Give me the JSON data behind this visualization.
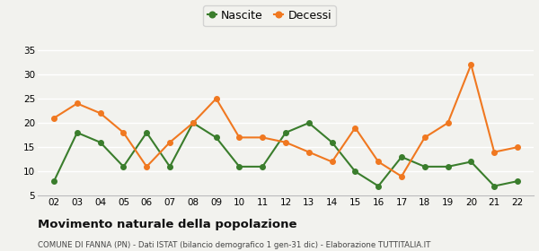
{
  "years": [
    2,
    3,
    4,
    5,
    6,
    7,
    8,
    9,
    10,
    11,
    12,
    13,
    14,
    15,
    16,
    17,
    18,
    19,
    20,
    21,
    22
  ],
  "nascite": [
    8,
    18,
    16,
    11,
    18,
    11,
    20,
    17,
    11,
    11,
    18,
    20,
    16,
    10,
    7,
    13,
    11,
    11,
    12,
    7,
    8
  ],
  "decessi": [
    21,
    24,
    22,
    18,
    11,
    16,
    20,
    25,
    17,
    17,
    16,
    14,
    12,
    19,
    12,
    9,
    17,
    20,
    32,
    14,
    15
  ],
  "nascite_color": "#3a7d2c",
  "decessi_color": "#f07820",
  "title": "Movimento naturale della popolazione",
  "subtitle": "COMUNE DI FANNA (PN) - Dati ISTAT (bilancio demografico 1 gen-31 dic) - Elaborazione TUTTITALIA.IT",
  "legend_nascite": "Nascite",
  "legend_decessi": "Decessi",
  "ylim": [
    5,
    36
  ],
  "yticks": [
    5,
    10,
    15,
    20,
    25,
    30,
    35
  ],
  "background_color": "#f2f2ee",
  "grid_color": "#ffffff"
}
